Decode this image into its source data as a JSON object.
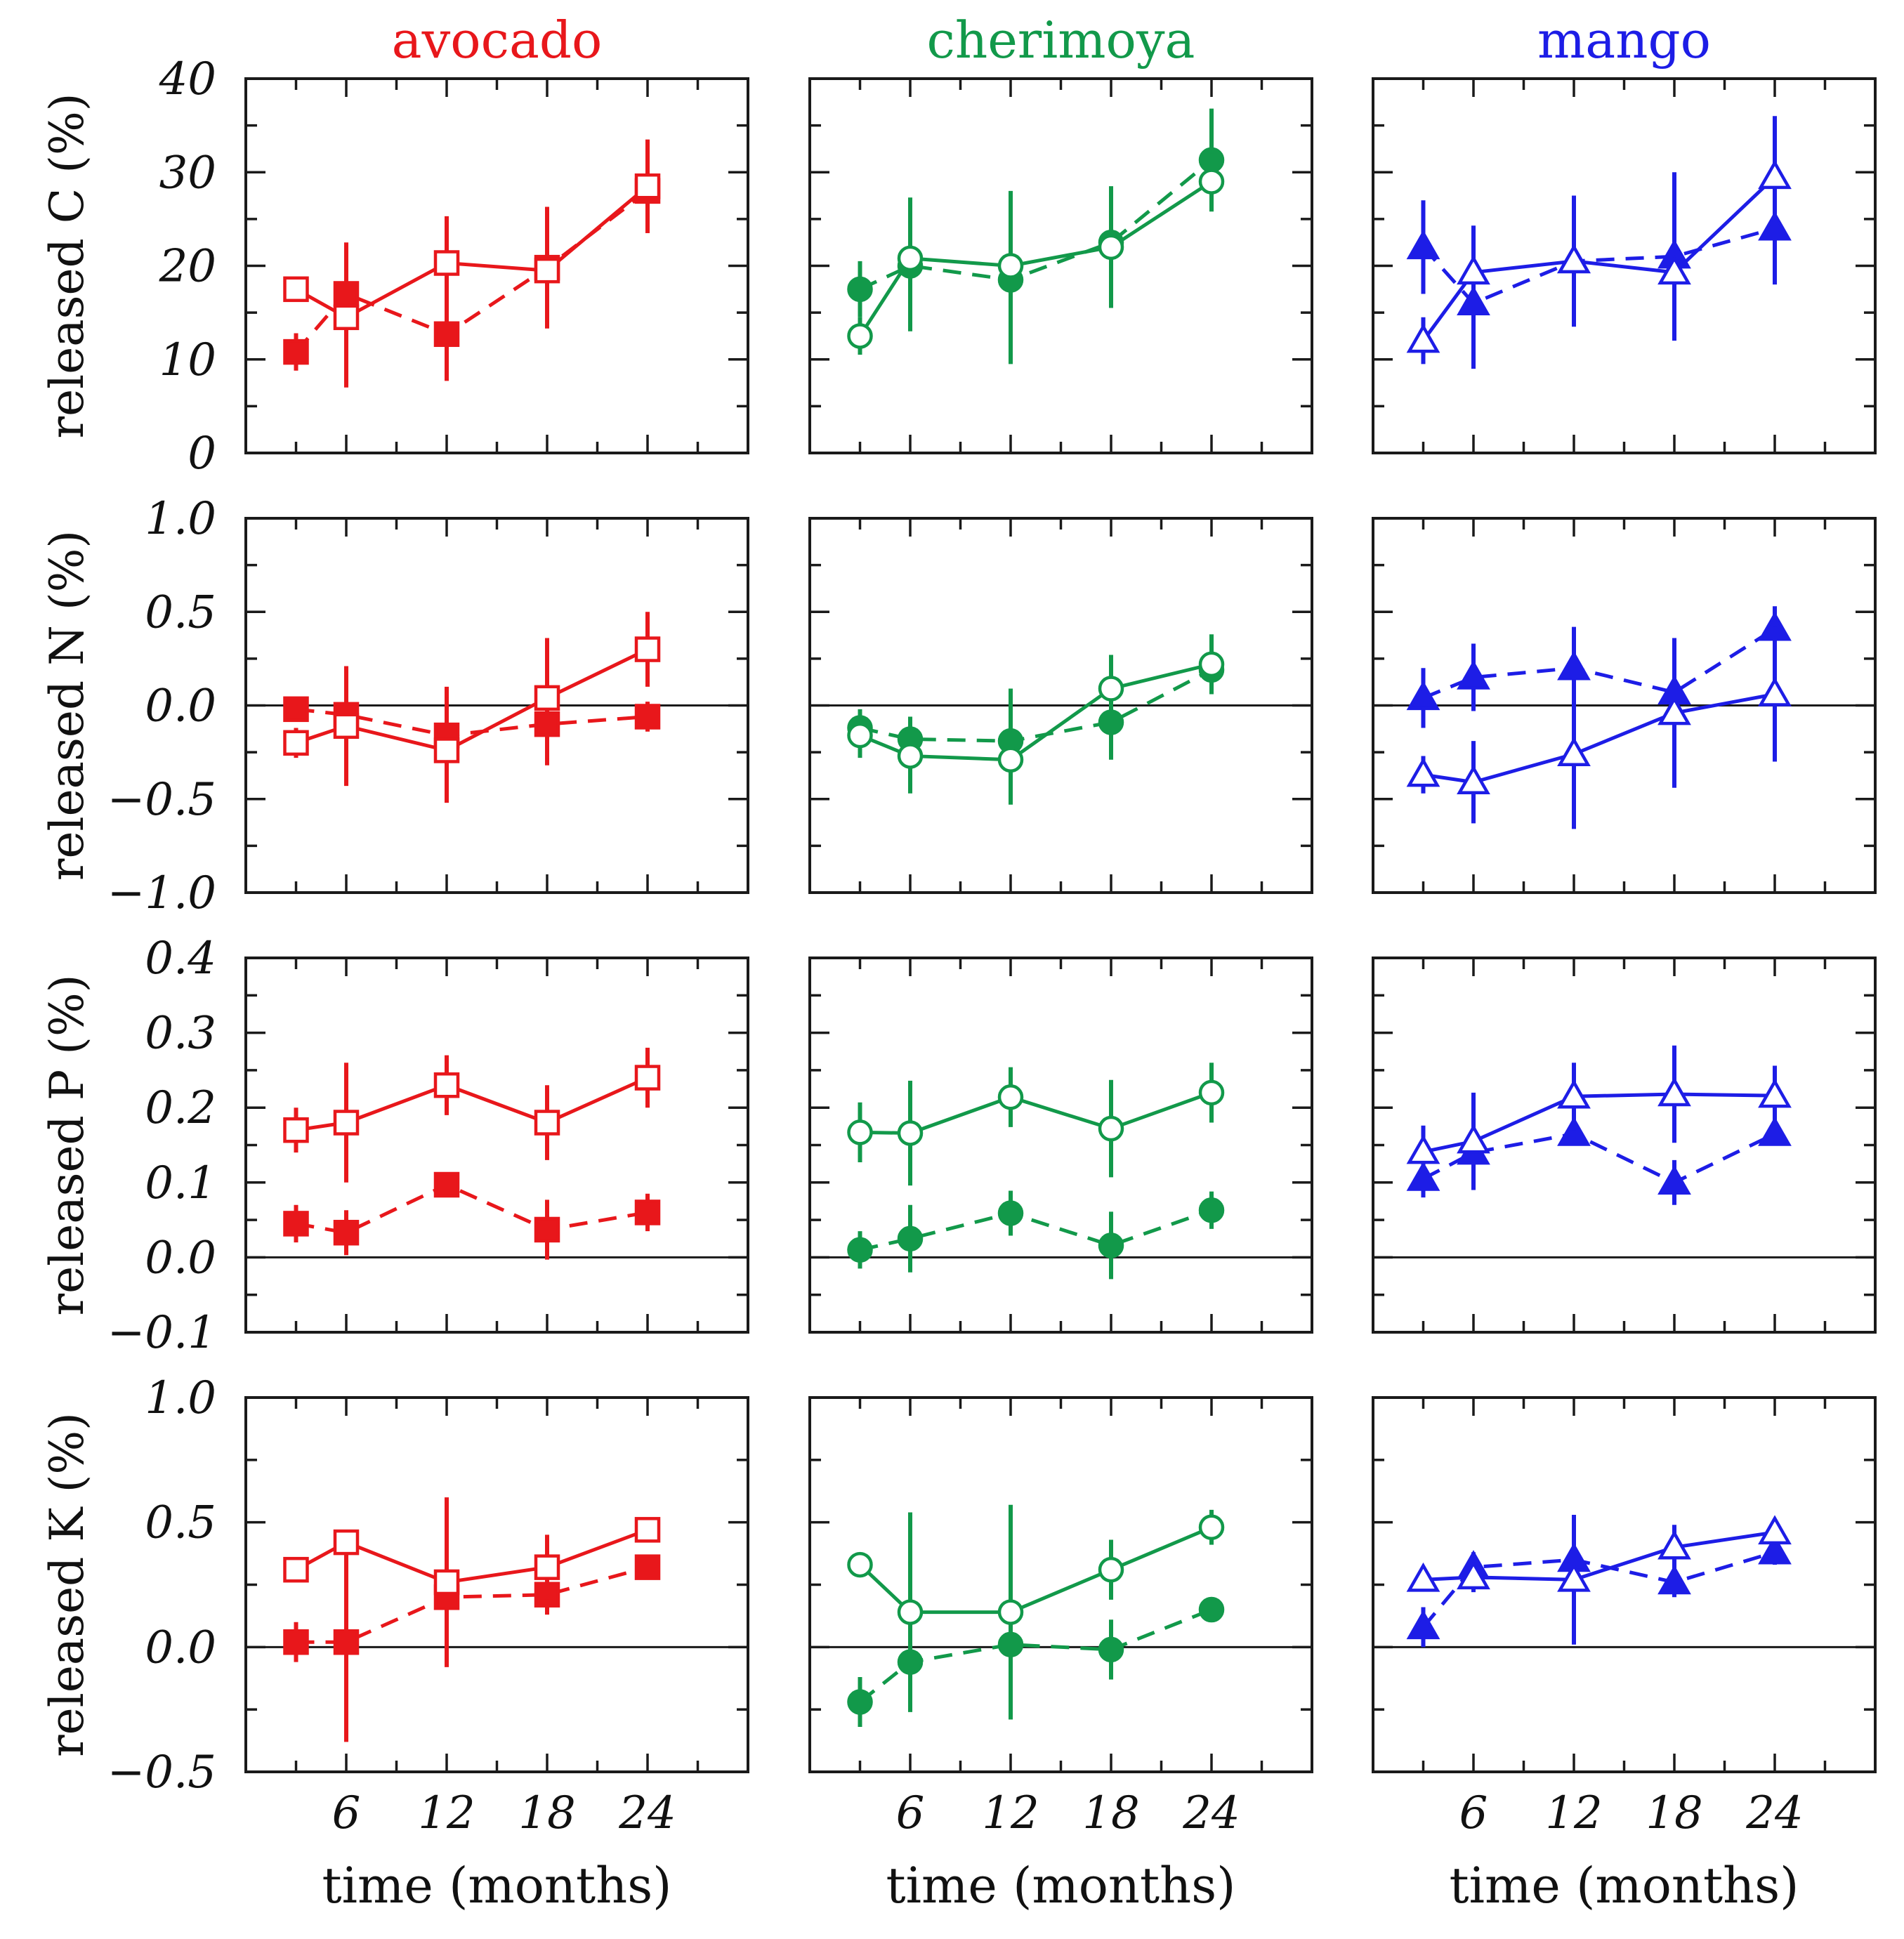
{
  "chart_data": {
    "type": "line",
    "x_ticks": [
      6,
      12,
      18,
      24
    ],
    "xlim": [
      0,
      30
    ],
    "xlabel": "time (months)",
    "columns": [
      {
        "key": "avocado",
        "title": "avocado",
        "color": "#e8171b",
        "marker": "square"
      },
      {
        "key": "cherimoya",
        "title": "cherimoya",
        "color": "#12994a",
        "marker": "circle"
      },
      {
        "key": "mango",
        "title": "mango",
        "color": "#1d1de6",
        "marker": "triangle"
      }
    ],
    "rows": [
      {
        "key": "C",
        "ylabel": "released C (%)",
        "ylim": [
          0,
          40
        ],
        "ytick_values": [
          0,
          10,
          20,
          30,
          40
        ],
        "ytick_labels": [
          "0",
          "10",
          "20",
          "30",
          "40"
        ],
        "zero_line": false
      },
      {
        "key": "N",
        "ylabel": "released N (%)",
        "ylim": [
          -1.0,
          1.0
        ],
        "ytick_values": [
          -1.0,
          -0.5,
          0.0,
          0.5,
          1.0
        ],
        "ytick_labels": [
          "−1.0",
          "−0.5",
          "0.0",
          "0.5",
          "1.0"
        ],
        "zero_line": true
      },
      {
        "key": "P",
        "ylabel": "released P (%)",
        "ylim": [
          -0.1,
          0.4
        ],
        "ytick_values": [
          -0.1,
          0.0,
          0.1,
          0.2,
          0.3,
          0.4
        ],
        "ytick_labels": [
          "−0.1",
          "0.0",
          "0.1",
          "0.2",
          "0.3",
          "0.4"
        ],
        "zero_line": true
      },
      {
        "key": "K",
        "ylabel": "released K (%)",
        "ylim": [
          -0.5,
          1.0
        ],
        "ytick_values": [
          -0.5,
          0.0,
          0.5,
          1.0
        ],
        "ytick_labels": [
          "−0.5",
          "0.0",
          "0.5",
          "1.0"
        ],
        "zero_line": true
      }
    ],
    "panels": [
      {
        "row": "C",
        "col": "avocado",
        "x": [
          3,
          6,
          12,
          18,
          24
        ],
        "series": [
          {
            "style": "open-solid",
            "y": [
              17.5,
              14.5,
              20.3,
              19.5,
              28.5
            ],
            "err": [
              0.5,
              7.5,
              5.0,
              6.0,
              5.0
            ]
          },
          {
            "style": "filled-dashed",
            "y": [
              10.8,
              17.0,
              12.7,
              19.8,
              28.0
            ],
            "err": [
              2.0,
              5.5,
              5.0,
              6.5,
              4.5
            ]
          }
        ]
      },
      {
        "row": "C",
        "col": "cherimoya",
        "x": [
          3,
          6,
          12,
          18,
          24
        ],
        "series": [
          {
            "style": "open-solid",
            "y": [
              12.5,
              20.8,
              20.0,
              22.0,
              29.0
            ],
            "err": [
              2.0,
              6.5,
              8.0,
              6.5,
              3.0
            ]
          },
          {
            "style": "filled-dashed",
            "y": [
              17.5,
              20.0,
              18.5,
              22.5,
              31.3
            ],
            "err": [
              3.0,
              7.0,
              9.0,
              6.0,
              5.5
            ]
          }
        ]
      },
      {
        "row": "C",
        "col": "mango",
        "x": [
          3,
          6,
          12,
          18,
          24
        ],
        "series": [
          {
            "style": "open-solid",
            "y": [
              12.0,
              19.3,
              20.5,
              19.3,
              29.5
            ],
            "err": [
              2.5,
              5.0,
              7.0,
              7.0,
              6.5
            ]
          },
          {
            "style": "filled-dashed",
            "y": [
              22.0,
              16.0,
              20.5,
              21.0,
              24.0
            ],
            "err": [
              5.0,
              7.0,
              7.0,
              9.0,
              6.0
            ]
          }
        ]
      },
      {
        "row": "N",
        "col": "avocado",
        "x": [
          3,
          6,
          12,
          18,
          24
        ],
        "series": [
          {
            "style": "open-solid",
            "y": [
              -0.2,
              -0.11,
              -0.24,
              0.04,
              0.3
            ],
            "err": [
              0.08,
              0.32,
              0.28,
              0.32,
              0.2
            ]
          },
          {
            "style": "filled-dashed",
            "y": [
              -0.02,
              -0.05,
              -0.16,
              -0.1,
              -0.06
            ],
            "err": [
              0.05,
              0.2,
              0.26,
              0.22,
              0.08
            ]
          }
        ]
      },
      {
        "row": "N",
        "col": "cherimoya",
        "x": [
          3,
          6,
          12,
          18,
          24
        ],
        "series": [
          {
            "style": "open-solid",
            "y": [
              -0.16,
              -0.27,
              -0.29,
              0.09,
              0.22
            ],
            "err": [
              0.12,
              0.2,
              0.24,
              0.18,
              0.16
            ]
          },
          {
            "style": "filled-dashed",
            "y": [
              -0.12,
              -0.18,
              -0.19,
              -0.09,
              0.19
            ],
            "err": [
              0.1,
              0.12,
              0.28,
              0.2,
              0.1
            ]
          }
        ]
      },
      {
        "row": "N",
        "col": "mango",
        "x": [
          3,
          6,
          12,
          18,
          24
        ],
        "series": [
          {
            "style": "open-solid",
            "y": [
              -0.37,
              -0.41,
              -0.26,
              -0.04,
              0.06
            ],
            "err": [
              0.1,
              0.22,
              0.4,
              0.4,
              0.36
            ]
          },
          {
            "style": "filled-dashed",
            "y": [
              0.04,
              0.15,
              0.2,
              0.07,
              0.41
            ],
            "err": [
              0.16,
              0.18,
              0.22,
              0.28,
              0.12
            ]
          }
        ]
      },
      {
        "row": "P",
        "col": "avocado",
        "x": [
          3,
          6,
          12,
          18,
          24
        ],
        "series": [
          {
            "style": "open-solid",
            "y": [
              0.17,
              0.18,
              0.23,
              0.18,
              0.24
            ],
            "err": [
              0.03,
              0.08,
              0.04,
              0.05,
              0.04
            ]
          },
          {
            "style": "filled-dashed",
            "y": [
              0.045,
              0.033,
              0.097,
              0.037,
              0.06
            ],
            "err": [
              0.025,
              0.03,
              0.01,
              0.04,
              0.025
            ]
          }
        ]
      },
      {
        "row": "P",
        "col": "cherimoya",
        "x": [
          3,
          6,
          12,
          18,
          24
        ],
        "series": [
          {
            "style": "open-solid",
            "y": [
              0.167,
              0.166,
              0.214,
              0.172,
              0.22
            ],
            "err": [
              0.04,
              0.07,
              0.04,
              0.065,
              0.04
            ]
          },
          {
            "style": "filled-dashed",
            "y": [
              0.01,
              0.025,
              0.059,
              0.016,
              0.063
            ],
            "err": [
              0.025,
              0.045,
              0.03,
              0.045,
              0.025
            ]
          }
        ]
      },
      {
        "row": "P",
        "col": "mango",
        "x": [
          3,
          6,
          12,
          18,
          24
        ],
        "series": [
          {
            "style": "open-solid",
            "y": [
              0.141,
              0.155,
              0.215,
              0.218,
              0.216
            ],
            "err": [
              0.035,
              0.065,
              0.045,
              0.065,
              0.04
            ]
          },
          {
            "style": "filled-dashed",
            "y": [
              0.105,
              0.14,
              0.165,
              0.1,
              0.165
            ],
            "err": [
              0.025,
              0.045,
              0.01,
              0.03,
              0.01
            ]
          }
        ]
      },
      {
        "row": "K",
        "col": "avocado",
        "x": [
          3,
          6,
          12,
          18,
          24
        ],
        "series": [
          {
            "style": "open-solid",
            "y": [
              0.31,
              0.42,
              0.26,
              0.32,
              0.47
            ],
            "err": [
              0.05,
              0.05,
              0.34,
              0.13,
              0.04
            ]
          },
          {
            "style": "filled-dashed",
            "y": [
              0.02,
              0.02,
              0.2,
              0.21,
              0.32
            ],
            "err": [
              0.08,
              0.4,
              0.28,
              0.08,
              0.04
            ]
          }
        ]
      },
      {
        "row": "K",
        "col": "cherimoya",
        "x": [
          3,
          6,
          12,
          18,
          24
        ],
        "series": [
          {
            "style": "open-solid",
            "y": [
              0.33,
              0.14,
              0.14,
              0.31,
              0.48
            ],
            "err": [
              0.02,
              0.4,
              0.43,
              0.12,
              0.07
            ]
          },
          {
            "style": "filled-dashed",
            "y": [
              -0.22,
              -0.06,
              0.01,
              -0.01,
              0.15
            ],
            "err": [
              0.1,
              0.2,
              0.3,
              0.12,
              0.02
            ]
          }
        ]
      },
      {
        "row": "K",
        "col": "mango",
        "x": [
          3,
          6,
          12,
          18,
          24
        ],
        "series": [
          {
            "style": "open-solid",
            "y": [
              0.27,
              0.28,
              0.27,
              0.4,
              0.46
            ],
            "err": [
              0.02,
              0.06,
              0.26,
              0.09,
              0.04
            ]
          },
          {
            "style": "filled-dashed",
            "y": [
              0.08,
              0.32,
              0.35,
              0.26,
              0.38
            ],
            "err": [
              0.08,
              0.06,
              0.16,
              0.06,
              0.05
            ]
          }
        ]
      }
    ]
  }
}
